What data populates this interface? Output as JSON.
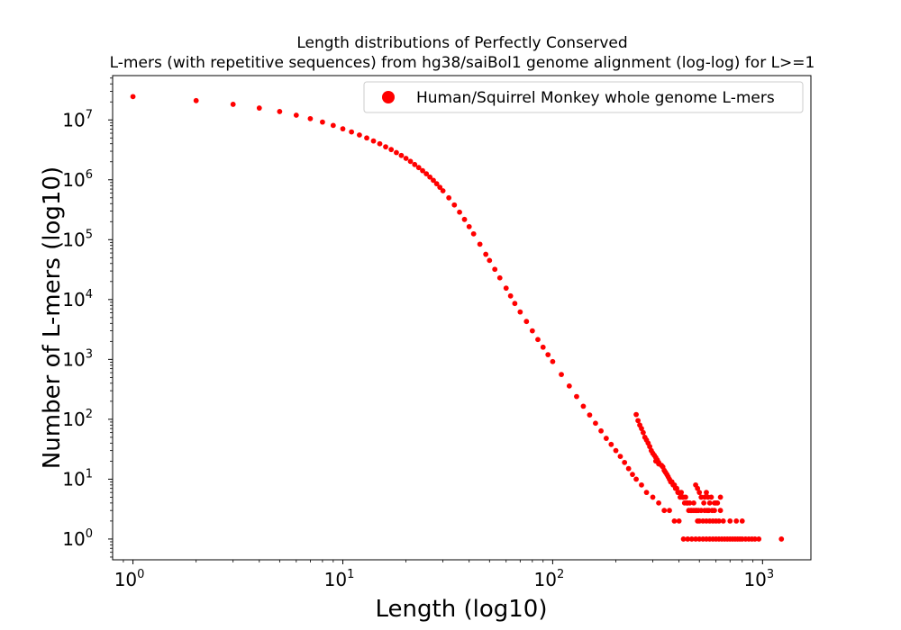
{
  "chart_data": {
    "type": "scatter",
    "title_line1": "Length distributions of Perfectly Conserved",
    "title_line2": "L-mers (with repetitive sequences) from hg38/saiBol1 genome alignment (log-log) for L>=1",
    "xlabel": "Length (log10)",
    "ylabel": "Number of L-mers (log10)",
    "xscale": "log",
    "yscale": "log",
    "xlim": [
      0.8,
      1700
    ],
    "ylim": [
      0.45,
      55000000
    ],
    "x_ticks": [
      {
        "base": "10",
        "exp": "0",
        "value": 1
      },
      {
        "base": "10",
        "exp": "1",
        "value": 10
      },
      {
        "base": "10",
        "exp": "2",
        "value": 100
      },
      {
        "base": "10",
        "exp": "3",
        "value": 1000
      }
    ],
    "y_ticks": [
      {
        "base": "10",
        "exp": "0",
        "value": 1
      },
      {
        "base": "10",
        "exp": "1",
        "value": 10
      },
      {
        "base": "10",
        "exp": "2",
        "value": 100
      },
      {
        "base": "10",
        "exp": "3",
        "value": 1000
      },
      {
        "base": "10",
        "exp": "4",
        "value": 10000
      },
      {
        "base": "10",
        "exp": "5",
        "value": 100000
      },
      {
        "base": "10",
        "exp": "6",
        "value": 1000000
      },
      {
        "base": "10",
        "exp": "7",
        "value": 10000000
      }
    ],
    "grid": false,
    "legend_position": "top-right",
    "series": [
      {
        "name": "Human/Squirrel Monkey whole genome L-mers",
        "color": "#ff0000",
        "marker": "circle",
        "points": [
          [
            1,
            24500000
          ],
          [
            2,
            21000000
          ],
          [
            3,
            18200000
          ],
          [
            4,
            15800000
          ],
          [
            5,
            13800000
          ],
          [
            6,
            12000000
          ],
          [
            7,
            10500000
          ],
          [
            8,
            9200000
          ],
          [
            9,
            8100000
          ],
          [
            10,
            7100000
          ],
          [
            11,
            6300000
          ],
          [
            12,
            5600000
          ],
          [
            13,
            5000000
          ],
          [
            14,
            4450000
          ],
          [
            15,
            4000000
          ],
          [
            16,
            3550000
          ],
          [
            17,
            3200000
          ],
          [
            18,
            2850000
          ],
          [
            19,
            2550000
          ],
          [
            20,
            2280000
          ],
          [
            21,
            2030000
          ],
          [
            22,
            1800000
          ],
          [
            23,
            1600000
          ],
          [
            24,
            1420000
          ],
          [
            25,
            1260000
          ],
          [
            26,
            1110000
          ],
          [
            27,
            980000
          ],
          [
            28,
            860000
          ],
          [
            29,
            750000
          ],
          [
            30,
            655000
          ],
          [
            32,
            500000
          ],
          [
            34,
            380000
          ],
          [
            36,
            288000
          ],
          [
            38,
            218000
          ],
          [
            40,
            165000
          ],
          [
            42,
            125000
          ],
          [
            45,
            84000
          ],
          [
            48,
            57000
          ],
          [
            50,
            45000
          ],
          [
            53,
            32000
          ],
          [
            56,
            23000
          ],
          [
            60,
            15500
          ],
          [
            63,
            11500
          ],
          [
            66,
            8600
          ],
          [
            70,
            6200
          ],
          [
            75,
            4300
          ],
          [
            80,
            3000
          ],
          [
            85,
            2150
          ],
          [
            90,
            1600
          ],
          [
            95,
            1200
          ],
          [
            100,
            920
          ],
          [
            110,
            560
          ],
          [
            120,
            360
          ],
          [
            130,
            240
          ],
          [
            140,
            165
          ],
          [
            150,
            118
          ],
          [
            160,
            86
          ],
          [
            170,
            64
          ],
          [
            180,
            48
          ],
          [
            190,
            38
          ],
          [
            200,
            30
          ],
          [
            210,
            24
          ],
          [
            220,
            19
          ],
          [
            230,
            15
          ],
          [
            240,
            12
          ],
          [
            250,
            10
          ],
          [
            265,
            8
          ],
          [
            280,
            6
          ],
          [
            300,
            5
          ],
          [
            320,
            4
          ],
          [
            340,
            3
          ],
          [
            360,
            3
          ],
          [
            380,
            2
          ],
          [
            400,
            2
          ],
          [
            420,
            1
          ],
          [
            250,
            120
          ],
          [
            255,
            95
          ],
          [
            260,
            80
          ],
          [
            265,
            70
          ],
          [
            270,
            60
          ],
          [
            275,
            50
          ],
          [
            280,
            45
          ],
          [
            285,
            40
          ],
          [
            290,
            35
          ],
          [
            295,
            30
          ],
          [
            300,
            27
          ],
          [
            305,
            25
          ],
          [
            310,
            23
          ],
          [
            315,
            21
          ],
          [
            320,
            19
          ],
          [
            330,
            17
          ],
          [
            340,
            14
          ],
          [
            350,
            12
          ],
          [
            360,
            10
          ],
          [
            370,
            9
          ],
          [
            380,
            8
          ],
          [
            390,
            7
          ],
          [
            400,
            6
          ],
          [
            410,
            6
          ],
          [
            420,
            5
          ],
          [
            430,
            5
          ],
          [
            440,
            4
          ],
          [
            450,
            4
          ],
          [
            460,
            3
          ],
          [
            470,
            3
          ],
          [
            480,
            3
          ],
          [
            490,
            2
          ],
          [
            500,
            2
          ],
          [
            520,
            2
          ],
          [
            540,
            2
          ],
          [
            560,
            2
          ],
          [
            580,
            2
          ],
          [
            600,
            2
          ],
          [
            620,
            2
          ],
          [
            650,
            2
          ],
          [
            700,
            2
          ],
          [
            750,
            2
          ],
          [
            800,
            2
          ],
          [
            440,
            1
          ],
          [
            460,
            1
          ],
          [
            480,
            1
          ],
          [
            500,
            1
          ],
          [
            520,
            1
          ],
          [
            540,
            1
          ],
          [
            560,
            1
          ],
          [
            580,
            1
          ],
          [
            600,
            1
          ],
          [
            620,
            1
          ],
          [
            640,
            1
          ],
          [
            660,
            1
          ],
          [
            680,
            1
          ],
          [
            700,
            1
          ],
          [
            720,
            1
          ],
          [
            740,
            1
          ],
          [
            760,
            1
          ],
          [
            780,
            1
          ],
          [
            800,
            1
          ],
          [
            830,
            1
          ],
          [
            860,
            1
          ],
          [
            890,
            1
          ],
          [
            920,
            1
          ],
          [
            960,
            1
          ],
          [
            1230,
            1
          ],
          [
            310,
            20
          ],
          [
            320,
            18
          ],
          [
            335,
            16
          ],
          [
            345,
            13
          ],
          [
            355,
            11
          ],
          [
            365,
            9
          ],
          [
            375,
            8
          ],
          [
            385,
            7
          ],
          [
            395,
            6
          ],
          [
            405,
            5
          ],
          [
            415,
            5
          ],
          [
            425,
            4
          ],
          [
            435,
            4
          ],
          [
            445,
            3
          ],
          [
            455,
            3
          ],
          [
            470,
            4
          ],
          [
            485,
            3
          ],
          [
            495,
            3
          ],
          [
            510,
            3
          ],
          [
            525,
            4
          ],
          [
            530,
            3
          ],
          [
            545,
            3
          ],
          [
            555,
            3
          ],
          [
            575,
            3
          ],
          [
            590,
            3
          ],
          [
            610,
            4
          ],
          [
            630,
            3
          ],
          [
            480,
            8
          ],
          [
            490,
            7
          ],
          [
            500,
            6
          ],
          [
            510,
            5
          ],
          [
            530,
            5
          ],
          [
            540,
            6
          ],
          [
            550,
            5
          ],
          [
            560,
            4
          ],
          [
            570,
            5
          ],
          [
            590,
            4
          ],
          [
            600,
            4
          ],
          [
            630,
            5
          ]
        ]
      }
    ]
  }
}
